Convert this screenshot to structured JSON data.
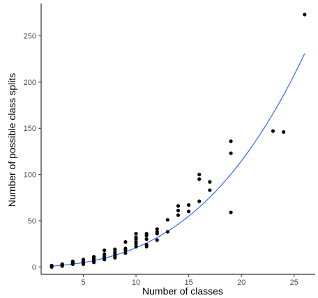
{
  "chart_data": {
    "type": "scatter",
    "title": "",
    "xlabel": "Number of classes",
    "ylabel": "Number of possible class splits",
    "xlim": [
      1,
      27
    ],
    "ylim": [
      -8,
      285
    ],
    "x_ticks": [
      5,
      10,
      15,
      20,
      25
    ],
    "y_ticks": [
      0,
      50,
      100,
      150,
      200,
      250
    ],
    "grid": false,
    "legend": "none",
    "colors": {
      "points": "#000000",
      "fit_line": "#3366ff",
      "axis": "#000000",
      "tick_label": "#4d4d4d"
    },
    "series": [
      {
        "type": "scatter",
        "points": [
          [
            2,
            0
          ],
          [
            2,
            1
          ],
          [
            2,
            0.5
          ],
          [
            2,
            1.5
          ],
          [
            3,
            1
          ],
          [
            3,
            2
          ],
          [
            3,
            2.5
          ],
          [
            3,
            3
          ],
          [
            4,
            3
          ],
          [
            4,
            4
          ],
          [
            4,
            5
          ],
          [
            4,
            6
          ],
          [
            5,
            3
          ],
          [
            5,
            4
          ],
          [
            5,
            5
          ],
          [
            5,
            6
          ],
          [
            5,
            7
          ],
          [
            5,
            8
          ],
          [
            6,
            5
          ],
          [
            6,
            6
          ],
          [
            6,
            8
          ],
          [
            6,
            10
          ],
          [
            6,
            11
          ],
          [
            7,
            8
          ],
          [
            7,
            10
          ],
          [
            7,
            12
          ],
          [
            7,
            14
          ],
          [
            7,
            18
          ],
          [
            8,
            10
          ],
          [
            8,
            12
          ],
          [
            8,
            14
          ],
          [
            8,
            16
          ],
          [
            8,
            19
          ],
          [
            9,
            15
          ],
          [
            9,
            18
          ],
          [
            9,
            20
          ],
          [
            9,
            27
          ],
          [
            10,
            22
          ],
          [
            10,
            25
          ],
          [
            10,
            27
          ],
          [
            10,
            30
          ],
          [
            10,
            32
          ],
          [
            10,
            36
          ],
          [
            11,
            22
          ],
          [
            11,
            24
          ],
          [
            11,
            30
          ],
          [
            11,
            34
          ],
          [
            11,
            36
          ],
          [
            12,
            29
          ],
          [
            12,
            36
          ],
          [
            12,
            38
          ],
          [
            12,
            41
          ],
          [
            13,
            38
          ],
          [
            13,
            51
          ],
          [
            14,
            56
          ],
          [
            14,
            61
          ],
          [
            14,
            66
          ],
          [
            15,
            60
          ],
          [
            15,
            67
          ],
          [
            16,
            71
          ],
          [
            16,
            95
          ],
          [
            16,
            100
          ],
          [
            17,
            83
          ],
          [
            17,
            92
          ],
          [
            19,
            59
          ],
          [
            19,
            123
          ],
          [
            19,
            136
          ],
          [
            23,
            147
          ],
          [
            24,
            146
          ],
          [
            26,
            273
          ]
        ]
      },
      {
        "type": "line",
        "curve": "fitted",
        "x_range": [
          2,
          26
        ],
        "coefficients_a_b_c_d": [
          0.01,
          0.063,
          0.5,
          -0.53
        ]
      }
    ]
  }
}
